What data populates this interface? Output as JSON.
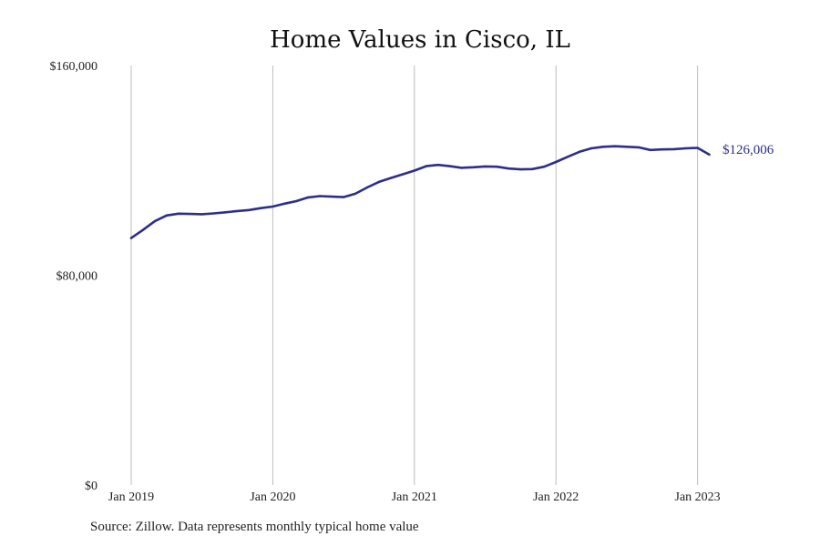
{
  "chart_data": {
    "type": "line",
    "title": "Home Values in Cisco, IL",
    "xlabel": "",
    "ylabel": "",
    "ylim": [
      0,
      160000
    ],
    "grid": "vertical",
    "color": "#2e2e8a",
    "yticks": [
      {
        "value": 0,
        "label": "$0"
      },
      {
        "value": 80000,
        "label": "$80,000"
      },
      {
        "value": 160000,
        "label": "$160,000"
      }
    ],
    "xticks": [
      {
        "value": "2019-01",
        "label": "Jan 2019"
      },
      {
        "value": "2020-01",
        "label": "Jan 2020"
      },
      {
        "value": "2021-01",
        "label": "Jan 2021"
      },
      {
        "value": "2022-01",
        "label": "Jan 2022"
      },
      {
        "value": "2023-01",
        "label": "Jan 2023"
      }
    ],
    "x": [
      "2019-01",
      "2019-02",
      "2019-03",
      "2019-04",
      "2019-05",
      "2019-06",
      "2019-07",
      "2019-08",
      "2019-09",
      "2019-10",
      "2019-11",
      "2019-12",
      "2020-01",
      "2020-02",
      "2020-03",
      "2020-04",
      "2020-05",
      "2020-06",
      "2020-07",
      "2020-08",
      "2020-09",
      "2020-10",
      "2020-11",
      "2020-12",
      "2021-01",
      "2021-02",
      "2021-03",
      "2021-04",
      "2021-05",
      "2021-06",
      "2021-07",
      "2021-08",
      "2021-09",
      "2021-10",
      "2021-11",
      "2021-12",
      "2022-01",
      "2022-02",
      "2022-03",
      "2022-04",
      "2022-05",
      "2022-06",
      "2022-07",
      "2022-08",
      "2022-09",
      "2022-10",
      "2022-11",
      "2022-12",
      "2023-01",
      "2023-02"
    ],
    "series": [
      {
        "values": [
          94200,
          97300,
          100600,
          102800,
          103500,
          103400,
          103300,
          103600,
          104000,
          104500,
          104900,
          105600,
          106200,
          107300,
          108300,
          109700,
          110200,
          110000,
          109800,
          111100,
          113500,
          115600,
          117100,
          118500,
          119900,
          121600,
          122100,
          121600,
          121000,
          121200,
          121500,
          121400,
          120700,
          120400,
          120500,
          121400,
          123200,
          125200,
          127100,
          128400,
          129000,
          129200,
          129000,
          128800,
          127800,
          128000,
          128100,
          128400,
          128600,
          126006
        ],
        "end_label": "$126,006"
      }
    ],
    "source": "Source: Zillow. Data represents monthly typical home value"
  }
}
